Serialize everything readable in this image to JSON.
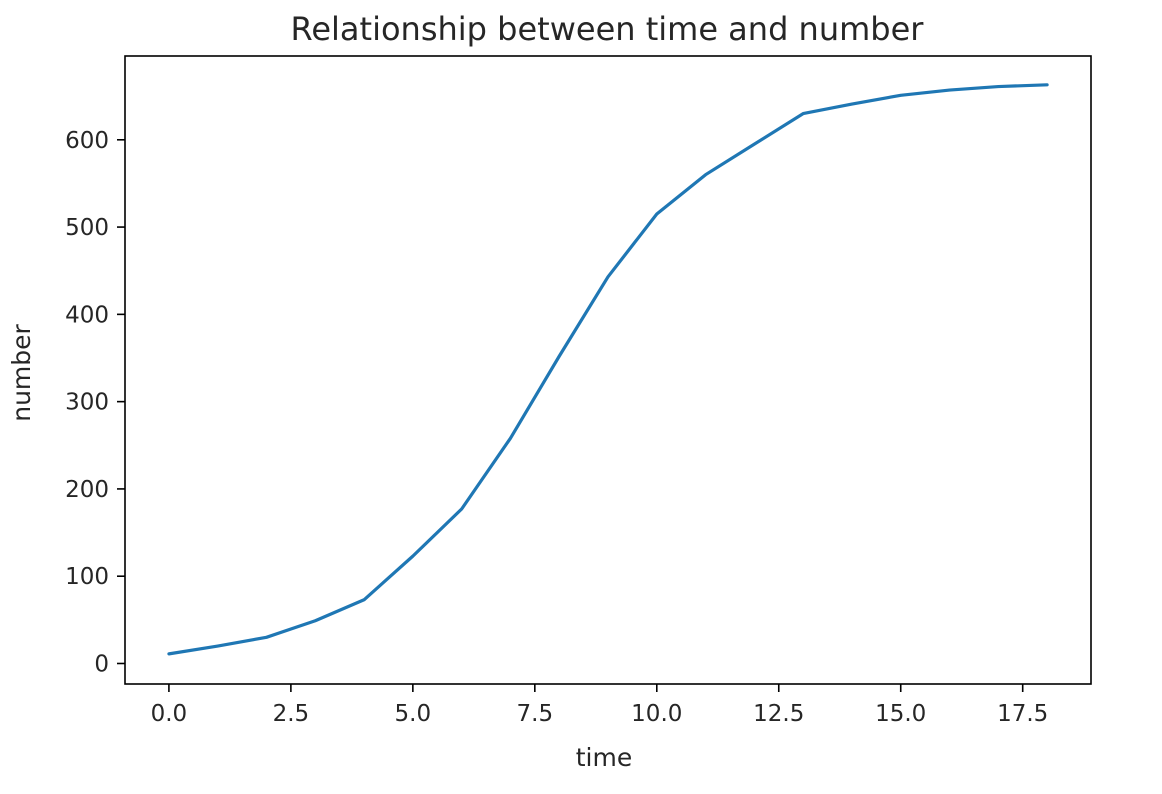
{
  "chart_data": {
    "type": "line",
    "title": "Relationship between time and number",
    "xlabel": "time",
    "ylabel": "number",
    "x": [
      0,
      1,
      2,
      3,
      4,
      5,
      6,
      7,
      8,
      9,
      10,
      11,
      12,
      13,
      14,
      15,
      16,
      17,
      18
    ],
    "series": [
      {
        "values": [
          11,
          20,
          30,
          49,
          73,
          123,
          177,
          258,
          352,
          443,
          515,
          560,
          595,
          630,
          641,
          651,
          657,
          661,
          663
        ],
        "color": "#1f77b4"
      }
    ],
    "xlim": [
      -0.9,
      18.9
    ],
    "ylim": [
      -23.5,
      696
    ],
    "xticks": [
      0,
      2.5,
      5,
      7.5,
      10,
      12.5,
      15,
      17.5
    ],
    "xtick_labels": [
      "0.0",
      "2.5",
      "5.0",
      "7.5",
      "10.0",
      "12.5",
      "15.0",
      "17.5"
    ],
    "yticks": [
      0,
      100,
      200,
      300,
      400,
      500,
      600
    ],
    "ytick_labels": [
      "0",
      "100",
      "200",
      "300",
      "400",
      "500",
      "600"
    ],
    "grid": false,
    "legend": "none"
  }
}
